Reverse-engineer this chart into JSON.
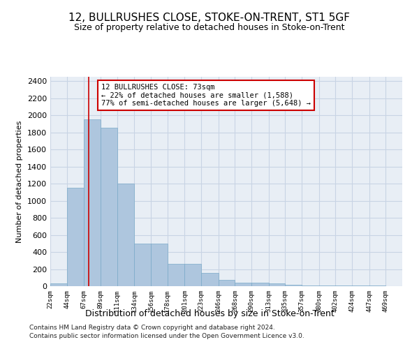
{
  "title": "12, BULLRUSHES CLOSE, STOKE-ON-TRENT, ST1 5GF",
  "subtitle": "Size of property relative to detached houses in Stoke-on-Trent",
  "xlabel": "Distribution of detached houses by size in Stoke-on-Trent",
  "ylabel": "Number of detached properties",
  "footer1": "Contains HM Land Registry data © Crown copyright and database right 2024.",
  "footer2": "Contains public sector information licensed under the Open Government Licence v3.0.",
  "bar_left_edges": [
    22,
    44,
    67,
    89,
    111,
    134,
    156,
    178,
    201,
    223,
    246,
    268,
    290,
    313,
    335,
    357,
    380,
    402,
    424,
    447
  ],
  "bar_widths": [
    22,
    23,
    22,
    22,
    23,
    22,
    22,
    23,
    22,
    23,
    22,
    22,
    23,
    22,
    22,
    23,
    22,
    22,
    23,
    22
  ],
  "bar_heights": [
    30,
    1150,
    1950,
    1850,
    1200,
    500,
    500,
    260,
    260,
    155,
    75,
    40,
    40,
    30,
    15,
    10,
    10,
    5,
    5,
    5
  ],
  "bar_color": "#aec6de",
  "bar_edge_color": "#7aaac8",
  "grid_color": "#c8d4e4",
  "property_line_x": 73,
  "property_line_color": "#cc0000",
  "annotation_text": "12 BULLRUSHES CLOSE: 73sqm\n← 22% of detached houses are smaller (1,588)\n77% of semi-detached houses are larger (5,648) →",
  "annotation_box_color": "#ffffff",
  "annotation_box_edge_color": "#cc0000",
  "ylim": [
    0,
    2450
  ],
  "yticks": [
    0,
    200,
    400,
    600,
    800,
    1000,
    1200,
    1400,
    1600,
    1800,
    2000,
    2200,
    2400
  ],
  "tick_labels": [
    "22sqm",
    "44sqm",
    "67sqm",
    "89sqm",
    "111sqm",
    "134sqm",
    "156sqm",
    "178sqm",
    "201sqm",
    "223sqm",
    "246sqm",
    "268sqm",
    "290sqm",
    "313sqm",
    "335sqm",
    "357sqm",
    "380sqm",
    "402sqm",
    "424sqm",
    "447sqm",
    "469sqm"
  ],
  "bg_color": "#ffffff",
  "plot_bg_color": "#e8eef5"
}
